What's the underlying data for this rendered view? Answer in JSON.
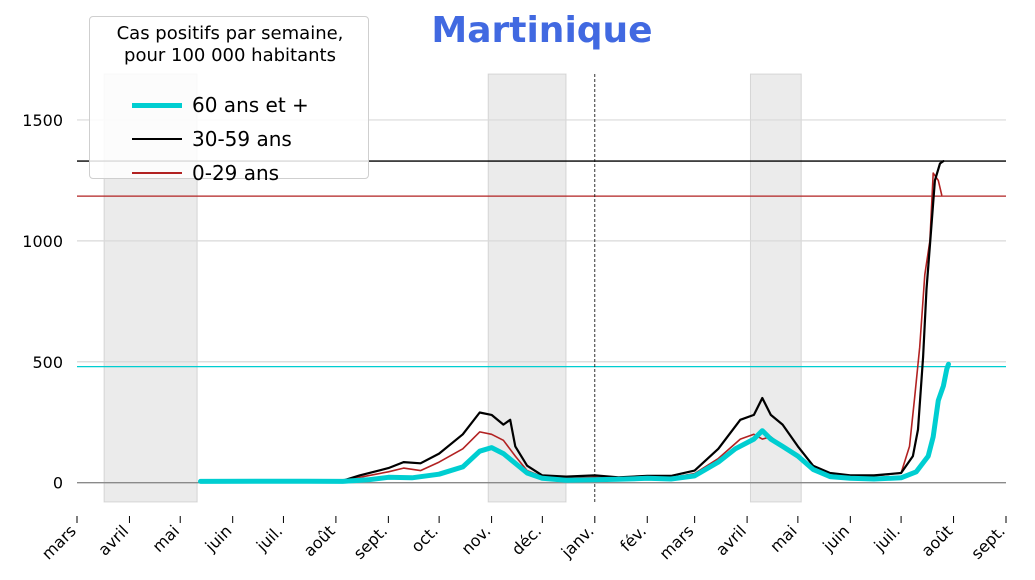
{
  "chart_data": {
    "type": "line",
    "title": "Martinique",
    "legend": {
      "title": "Cas positifs par semaine,\npour 100 000 habitants",
      "placement": "top-left"
    },
    "x_tick_labels": [
      "mars",
      "avril",
      "mai",
      "juin",
      "juil.",
      "août",
      "sept.",
      "oct.",
      "nov.",
      "déc.",
      "janv.",
      "fév.",
      "mars",
      "avril",
      "mai",
      "juin",
      "juil.",
      "août",
      "sept."
    ],
    "y_ticks": [
      0,
      500,
      1000,
      1500
    ],
    "ylim": [
      -80,
      1690
    ],
    "grid": "horizontal",
    "shaded_periods": [
      {
        "start": "2020-03-17",
        "end": "2020-05-11"
      },
      {
        "start": "2020-10-30",
        "end": "2020-12-15"
      },
      {
        "start": "2021-04-03",
        "end": "2021-05-03"
      }
    ],
    "vline": "2021-01-01",
    "series": [
      {
        "name": "60 ans et +",
        "color": "#00ced1",
        "current_level": 480,
        "points": [
          [
            "2020-05-13",
            5
          ],
          [
            "2020-06-15",
            6
          ],
          [
            "2020-07-15",
            6
          ],
          [
            "2020-08-05",
            5
          ],
          [
            "2020-08-20",
            12
          ],
          [
            "2020-09-01",
            22
          ],
          [
            "2020-09-15",
            20
          ],
          [
            "2020-10-01",
            35
          ],
          [
            "2020-10-15",
            65
          ],
          [
            "2020-10-25",
            130
          ],
          [
            "2020-11-01",
            145
          ],
          [
            "2020-11-08",
            120
          ],
          [
            "2020-11-15",
            80
          ],
          [
            "2020-11-22",
            40
          ],
          [
            "2020-12-01",
            18
          ],
          [
            "2020-12-15",
            10
          ],
          [
            "2021-01-01",
            12
          ],
          [
            "2021-01-15",
            14
          ],
          [
            "2021-02-01",
            18
          ],
          [
            "2021-02-15",
            15
          ],
          [
            "2021-03-01",
            28
          ],
          [
            "2021-03-15",
            85
          ],
          [
            "2021-03-25",
            140
          ],
          [
            "2021-04-05",
            180
          ],
          [
            "2021-04-10",
            215
          ],
          [
            "2021-04-15",
            180
          ],
          [
            "2021-04-22",
            150
          ],
          [
            "2021-05-01",
            110
          ],
          [
            "2021-05-10",
            55
          ],
          [
            "2021-05-20",
            25
          ],
          [
            "2021-06-01",
            18
          ],
          [
            "2021-06-15",
            15
          ],
          [
            "2021-07-01",
            20
          ],
          [
            "2021-07-10",
            45
          ],
          [
            "2021-07-17",
            110
          ],
          [
            "2021-07-20",
            190
          ],
          [
            "2021-07-23",
            340
          ],
          [
            "2021-07-26",
            400
          ],
          [
            "2021-07-28",
            470
          ],
          [
            "2021-07-29",
            490
          ]
        ]
      },
      {
        "name": "30-59 ans",
        "color": "#000000",
        "current_level": 1330,
        "points": [
          [
            "2020-05-13",
            5
          ],
          [
            "2020-06-15",
            7
          ],
          [
            "2020-07-15",
            5
          ],
          [
            "2020-08-05",
            8
          ],
          [
            "2020-08-15",
            30
          ],
          [
            "2020-09-01",
            60
          ],
          [
            "2020-09-10",
            85
          ],
          [
            "2020-09-20",
            80
          ],
          [
            "2020-10-01",
            120
          ],
          [
            "2020-10-15",
            200
          ],
          [
            "2020-10-25",
            290
          ],
          [
            "2020-11-01",
            280
          ],
          [
            "2020-11-08",
            240
          ],
          [
            "2020-11-12",
            260
          ],
          [
            "2020-11-15",
            150
          ],
          [
            "2020-11-22",
            70
          ],
          [
            "2020-12-01",
            30
          ],
          [
            "2020-12-15",
            25
          ],
          [
            "2021-01-01",
            30
          ],
          [
            "2021-01-15",
            22
          ],
          [
            "2021-02-01",
            28
          ],
          [
            "2021-02-15",
            28
          ],
          [
            "2021-03-01",
            50
          ],
          [
            "2021-03-15",
            140
          ],
          [
            "2021-03-28",
            260
          ],
          [
            "2021-04-05",
            280
          ],
          [
            "2021-04-10",
            350
          ],
          [
            "2021-04-15",
            280
          ],
          [
            "2021-04-22",
            240
          ],
          [
            "2021-05-01",
            150
          ],
          [
            "2021-05-10",
            70
          ],
          [
            "2021-05-20",
            40
          ],
          [
            "2021-06-01",
            30
          ],
          [
            "2021-06-15",
            30
          ],
          [
            "2021-07-01",
            40
          ],
          [
            "2021-07-08",
            110
          ],
          [
            "2021-07-11",
            220
          ],
          [
            "2021-07-14",
            520
          ],
          [
            "2021-07-16",
            800
          ],
          [
            "2021-07-18",
            980
          ],
          [
            "2021-07-21",
            1250
          ],
          [
            "2021-07-24",
            1320
          ],
          [
            "2021-07-26",
            1330
          ]
        ]
      },
      {
        "name": "0-29 ans",
        "color": "#b22222",
        "current_level": 1185,
        "points": [
          [
            "2020-05-13",
            5
          ],
          [
            "2020-06-15",
            6
          ],
          [
            "2020-07-15",
            5
          ],
          [
            "2020-08-05",
            6
          ],
          [
            "2020-08-15",
            22
          ],
          [
            "2020-09-01",
            45
          ],
          [
            "2020-09-10",
            60
          ],
          [
            "2020-09-20",
            50
          ],
          [
            "2020-10-01",
            85
          ],
          [
            "2020-10-15",
            140
          ],
          [
            "2020-10-25",
            210
          ],
          [
            "2020-11-01",
            200
          ],
          [
            "2020-11-08",
            175
          ],
          [
            "2020-11-15",
            110
          ],
          [
            "2020-11-22",
            50
          ],
          [
            "2020-12-01",
            25
          ],
          [
            "2020-12-15",
            18
          ],
          [
            "2021-01-01",
            22
          ],
          [
            "2021-01-15",
            18
          ],
          [
            "2021-02-01",
            22
          ],
          [
            "2021-02-15",
            20
          ],
          [
            "2021-03-01",
            38
          ],
          [
            "2021-03-15",
            100
          ],
          [
            "2021-03-28",
            180
          ],
          [
            "2021-04-05",
            200
          ],
          [
            "2021-04-10",
            180
          ],
          [
            "2021-04-15",
            190
          ],
          [
            "2021-04-22",
            150
          ],
          [
            "2021-05-01",
            110
          ],
          [
            "2021-05-10",
            60
          ],
          [
            "2021-05-20",
            30
          ],
          [
            "2021-06-01",
            25
          ],
          [
            "2021-06-15",
            28
          ],
          [
            "2021-07-01",
            40
          ],
          [
            "2021-07-06",
            150
          ],
          [
            "2021-07-09",
            350
          ],
          [
            "2021-07-12",
            560
          ],
          [
            "2021-07-15",
            860
          ],
          [
            "2021-07-18",
            1000
          ],
          [
            "2021-07-20",
            1280
          ],
          [
            "2021-07-23",
            1250
          ],
          [
            "2021-07-25",
            1190
          ]
        ]
      }
    ]
  }
}
